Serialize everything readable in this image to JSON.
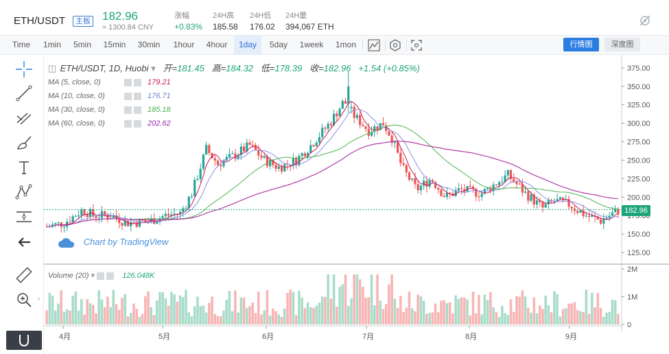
{
  "header": {
    "symbol": "ETH/USDT",
    "board_badge": "主板",
    "last_price": "182.96",
    "cny_price": "≈ 1300.84 CNY",
    "stats": [
      {
        "label": "涨幅",
        "value": "+0.83%"
      },
      {
        "label": "24H高",
        "value": "185.58"
      },
      {
        "label": "24H低",
        "value": "176.02"
      },
      {
        "label": "24H量",
        "value": "394,067 ETH"
      }
    ]
  },
  "toolbar": {
    "timeframes": [
      "Time",
      "1min",
      "5min",
      "15min",
      "30min",
      "1hour",
      "4hour",
      "1day",
      "5day",
      "1week",
      "1mon"
    ],
    "active_timeframe": "1day",
    "candle_button": "行情图",
    "depth_button": "深度图"
  },
  "legend": {
    "title": "ETH/USDT, 1D, Huobi",
    "open_label": "开=",
    "open": "181.45",
    "high_label": "高=",
    "high": "184.32",
    "low_label": "低=",
    "low": "178.39",
    "close_label": "收=",
    "close": "182.96",
    "change": "+1.54 (+0.85%)",
    "ma": [
      {
        "label": "MA (5, close, 0)",
        "value": "179.21",
        "color": "#c2185b"
      },
      {
        "label": "MA (10, close, 0)",
        "value": "176.71",
        "color": "#6a7fd6"
      },
      {
        "label": "MA (30, close, 0)",
        "value": "185.18",
        "color": "#4caf50"
      },
      {
        "label": "MA (60, close, 0)",
        "value": "202.62",
        "color": "#9c27b0"
      }
    ],
    "volume_label": "Volume (20)",
    "volume_value": "126.048K"
  },
  "watermark": "Chart by TradingView",
  "price_tag": "182.96",
  "colors": {
    "up": "#26a69a",
    "down": "#ef5350",
    "up_volume": "#a8dcc9",
    "down_volume": "#f7b5b4",
    "ma5": "#c2185b",
    "ma10": "#8a8fe0",
    "ma30": "#5cb85c",
    "ma60": "#b03aa6",
    "accent": "#2a7de1"
  },
  "chart_data": {
    "type": "candlestick",
    "price_axis": {
      "ticks": [
        "375.00",
        "350.00",
        "325.00",
        "300.00",
        "275.00",
        "250.00",
        "225.00",
        "200.00",
        "175.00",
        "150.00",
        "125.00"
      ],
      "ylim": [
        112,
        387
      ]
    },
    "volume_axis": {
      "ticks": [
        "2M",
        "1M",
        "0"
      ],
      "ylim": [
        0,
        2000000
      ]
    },
    "time_axis": [
      "4月",
      "5月",
      "6月",
      "7月",
      "8月",
      "9月"
    ],
    "current_price": 182.96
  }
}
